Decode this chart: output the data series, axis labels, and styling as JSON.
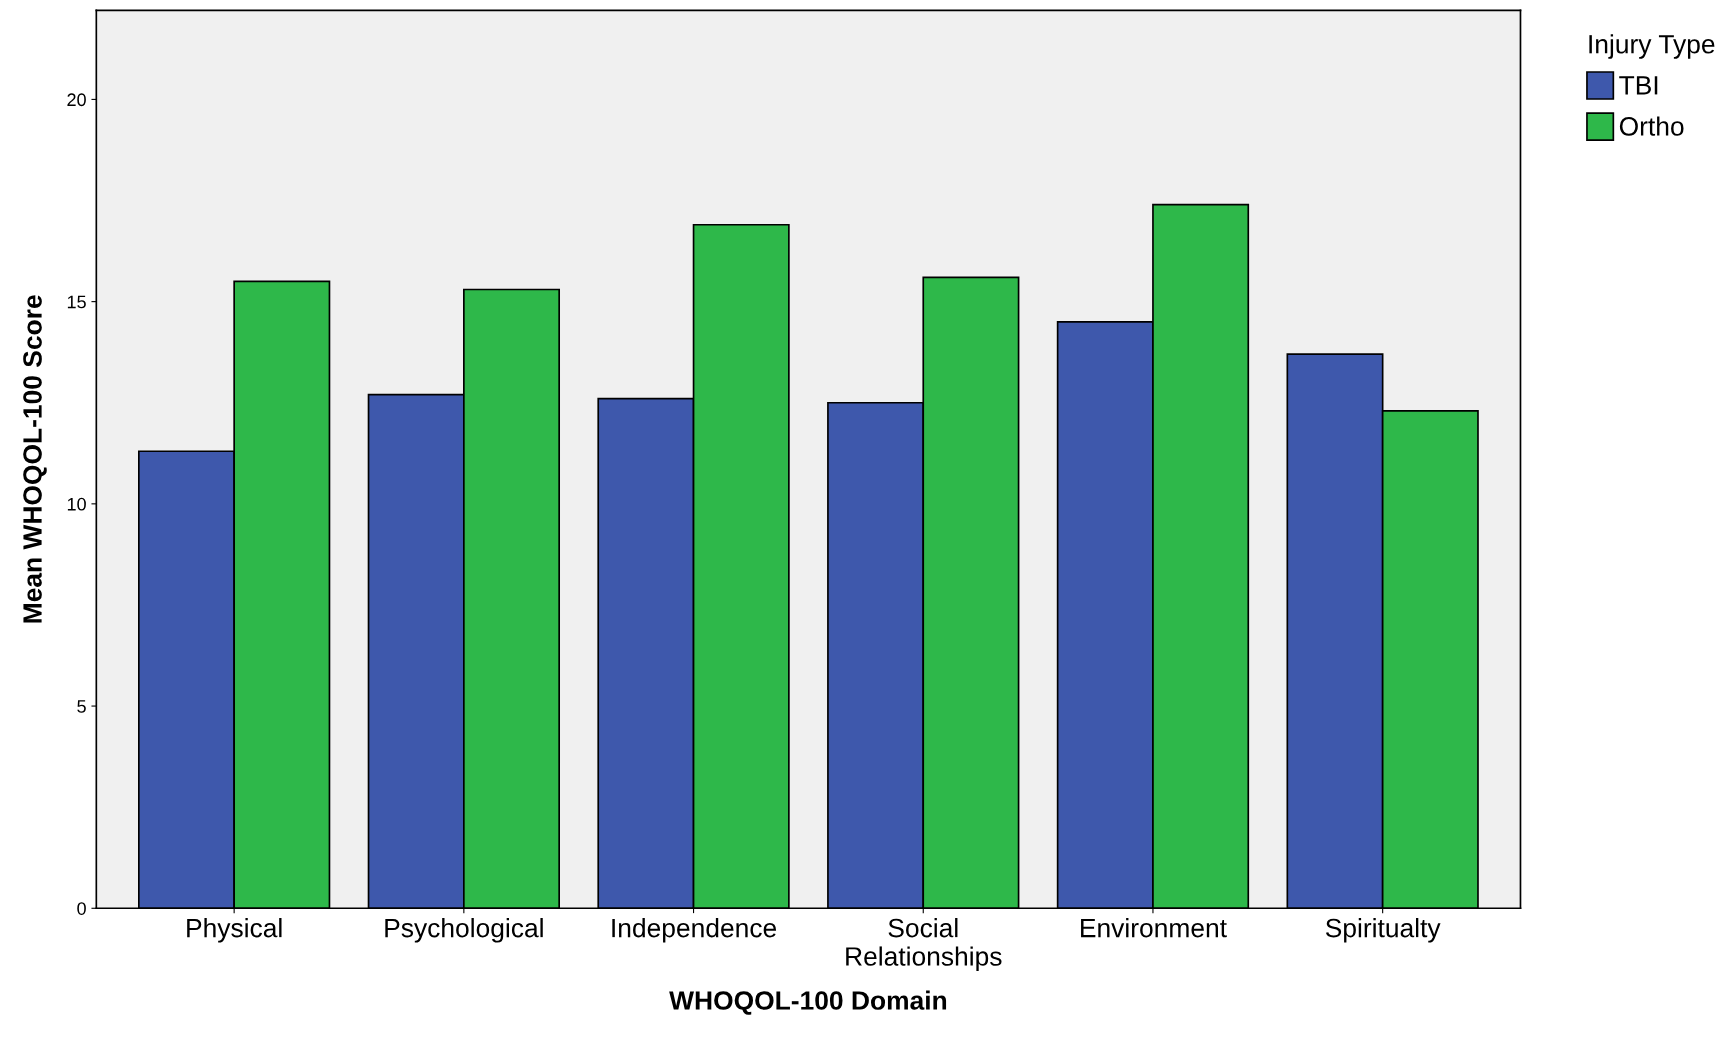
{
  "chart_data": {
    "type": "bar",
    "xlabel": "WHOQOL-100 Domain",
    "ylabel": "Mean WHOQOL-100 Score",
    "legend_title": "Injury Type",
    "legend": "top right",
    "categories": [
      "Physical",
      "Psychological",
      "Independence",
      "Social\nRelationships",
      "Environment",
      "Spiritualty"
    ],
    "series": [
      {
        "name": "TBI",
        "color": "#3e58ac",
        "values": [
          11.3,
          12.7,
          12.6,
          12.5,
          14.5,
          13.7
        ]
      },
      {
        "name": "Ortho",
        "color": "#2eb84a",
        "values": [
          15.5,
          15.3,
          16.9,
          15.6,
          17.4,
          12.3
        ]
      }
    ],
    "ylim": [
      0,
      22.2
    ],
    "yticks": [
      0,
      5,
      10,
      15,
      20
    ],
    "grid": false
  }
}
